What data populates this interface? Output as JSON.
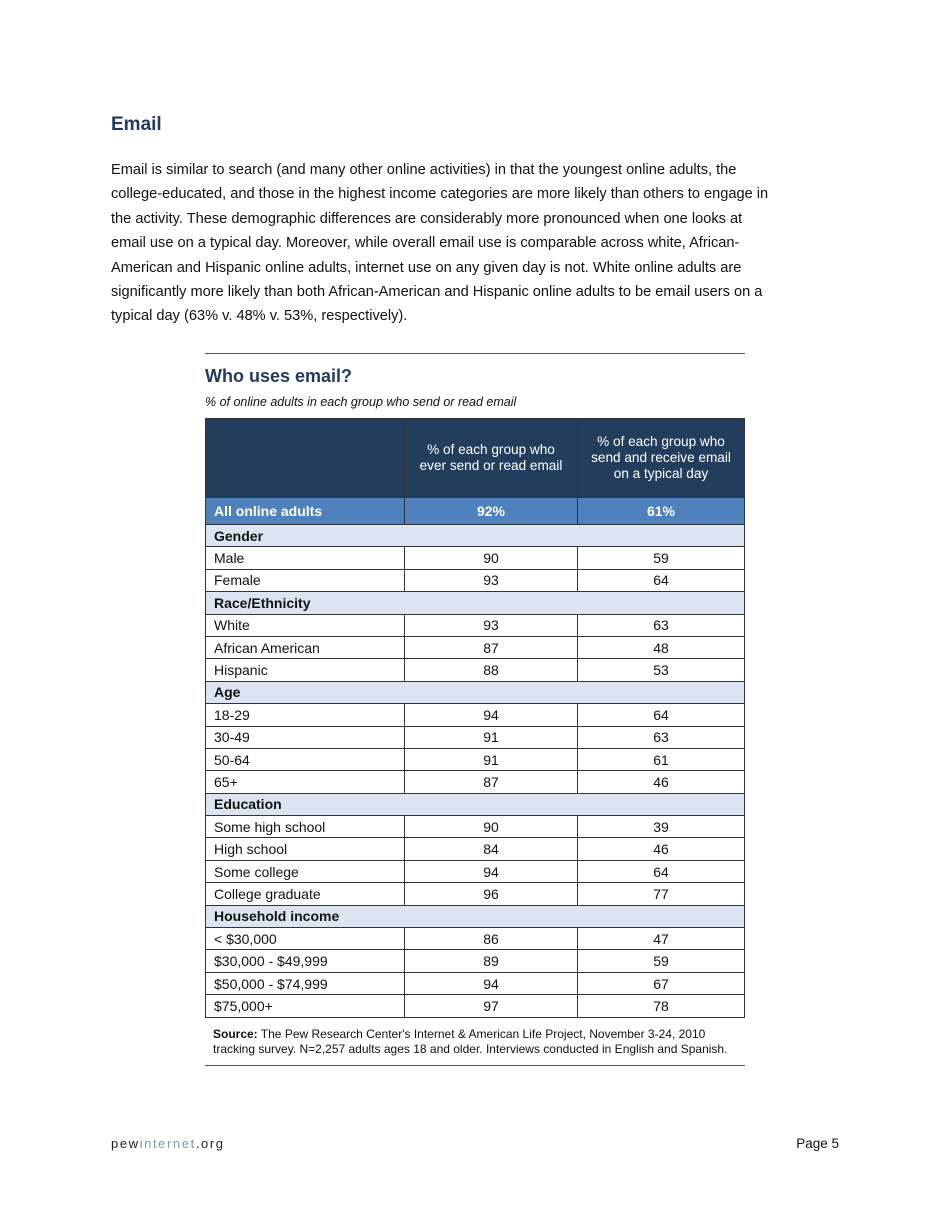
{
  "heading": "Email",
  "paragraph_lines": [
    "Email is similar to search (and many other online activities) in that the youngest online adults, the",
    "college-educated, and those in the highest income categories are more likely than others to engage in",
    "the activity.   These demographic differences are considerably more pronounced when one looks at",
    "email use on a typical day.   Moreover, while overall email use is comparable across white, African-",
    "American and Hispanic online adults, internet use on any given day is not.  White online adults are",
    "significantly more likely than both African-American and Hispanic online adults to be email users on a",
    "typical day (63% v. 48% v. 53%, respectively)."
  ],
  "table": {
    "title": "Who uses email?",
    "subtitle": "% of online adults in each group who send or read email",
    "columns": [
      "",
      "% of each group who ever send or read email",
      "% of each group who send and receive email on a typical day"
    ],
    "total": {
      "label": "All online adults",
      "ever": "92%",
      "typical": "61%"
    },
    "groups": [
      {
        "name": "Gender",
        "rows": [
          [
            "Male",
            "90",
            "59"
          ],
          [
            "Female",
            "93",
            "64"
          ]
        ]
      },
      {
        "name": "Race/Ethnicity",
        "rows": [
          [
            "White",
            "93",
            "63"
          ],
          [
            "African American",
            "87",
            "48"
          ],
          [
            "Hispanic",
            "88",
            "53"
          ]
        ]
      },
      {
        "name": "Age",
        "rows": [
          [
            "18-29",
            "94",
            "64"
          ],
          [
            "30-49",
            "91",
            "63"
          ],
          [
            "50-64",
            "91",
            "61"
          ],
          [
            "65+",
            "87",
            "46"
          ]
        ]
      },
      {
        "name": "Education",
        "rows": [
          [
            "Some high school",
            "90",
            "39"
          ],
          [
            "High school",
            "84",
            "46"
          ],
          [
            "Some college",
            "94",
            "64"
          ],
          [
            "College graduate",
            "96",
            "77"
          ]
        ]
      },
      {
        "name": "Household income",
        "rows": [
          [
            "< $30,000",
            "86",
            "47"
          ],
          [
            "$30,000 - $49,999",
            "89",
            "59"
          ],
          [
            "$50,000 - $74,999",
            "94",
            "67"
          ],
          [
            "$75,000+",
            "97",
            "78"
          ]
        ]
      }
    ],
    "source_label": "Source:",
    "source_text": " The Pew Research Center's Internet & American Life Project, November 3-24, 2010 tracking survey. N=2,257 adults ages 18 and older. Interviews conducted in English and Spanish."
  },
  "footer": {
    "site_pre": "pew",
    "site_mid": "internet",
    "site_post": ".org",
    "page": "Page 5"
  },
  "colors": {
    "heading": "#1f3b5e",
    "header_bg": "#233d5d",
    "total_bg": "#4f81bd",
    "category_bg": "#dbe5f1"
  }
}
